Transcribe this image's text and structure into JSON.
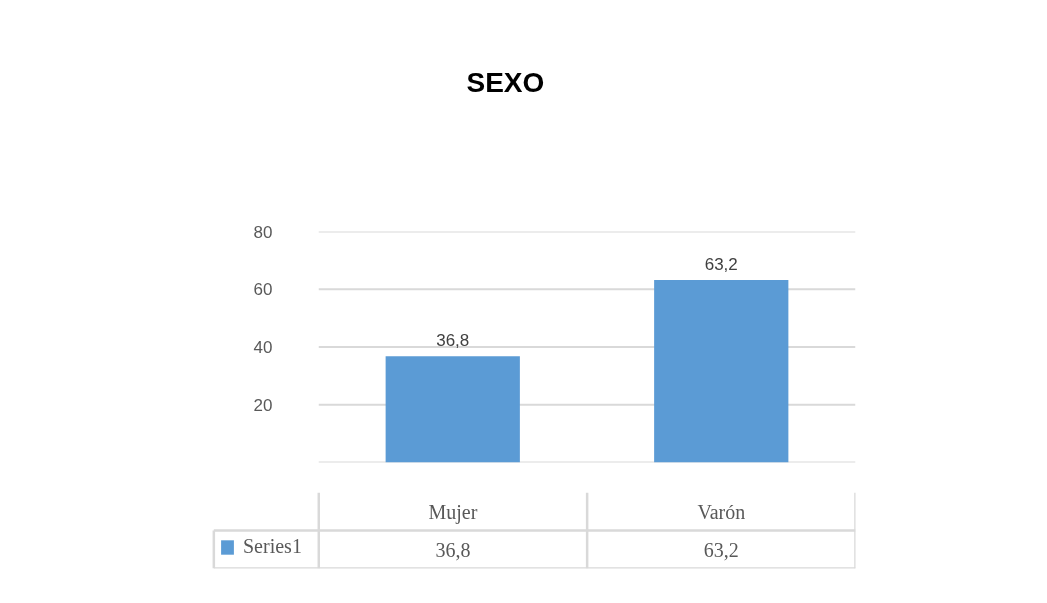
{
  "chart_data": {
    "type": "bar",
    "title": "SEXO",
    "categories": [
      "Mujer",
      "Varón"
    ],
    "series": [
      {
        "name": "Series1",
        "color": "#5b9bd5",
        "values": [
          36.8,
          63.2
        ],
        "value_labels": [
          "36,8",
          "63,2"
        ]
      }
    ],
    "ylim": [
      0,
      80
    ],
    "yticks": [
      {
        "value": 0,
        "label": null
      },
      20,
      40,
      60,
      80
    ],
    "grid": "y",
    "legend": "bottom"
  }
}
